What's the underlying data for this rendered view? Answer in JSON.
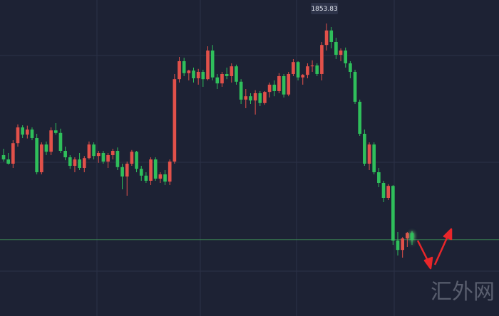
{
  "chart_data": {
    "type": "candlestick",
    "up_color": "#e2514a",
    "down_color": "#2fbf5b",
    "ohlc": [
      [
        1823.0,
        1824.5,
        1821.5,
        1822.0
      ],
      [
        1822.0,
        1823.5,
        1820.8,
        1821.0
      ],
      [
        1821.0,
        1826.5,
        1820.0,
        1825.8
      ],
      [
        1825.8,
        1830.2,
        1825.0,
        1829.5
      ],
      [
        1829.5,
        1830.0,
        1827.0,
        1827.8
      ],
      [
        1827.8,
        1829.9,
        1826.9,
        1829.0
      ],
      [
        1829.0,
        1829.5,
        1826.5,
        1827.0
      ],
      [
        1827.0,
        1828.0,
        1818.5,
        1819.0
      ],
      [
        1819.0,
        1826.0,
        1818.5,
        1825.5
      ],
      [
        1825.5,
        1826.2,
        1823.0,
        1823.8
      ],
      [
        1823.8,
        1829.5,
        1823.0,
        1828.8
      ],
      [
        1828.8,
        1830.5,
        1827.8,
        1828.2
      ],
      [
        1828.2,
        1829.2,
        1823.5,
        1824.0
      ],
      [
        1824.0,
        1825.0,
        1821.8,
        1822.5
      ],
      [
        1822.5,
        1823.0,
        1819.8,
        1820.5
      ],
      [
        1820.5,
        1822.5,
        1819.0,
        1822.0
      ],
      [
        1822.0,
        1823.5,
        1819.5,
        1820.0
      ],
      [
        1820.0,
        1822.8,
        1819.0,
        1822.3
      ],
      [
        1822.3,
        1826.2,
        1822.0,
        1825.5
      ],
      [
        1825.5,
        1826.0,
        1822.0,
        1822.8
      ],
      [
        1822.8,
        1824.0,
        1821.2,
        1823.5
      ],
      [
        1823.5,
        1824.0,
        1821.0,
        1821.5
      ],
      [
        1821.5,
        1823.5,
        1820.0,
        1823.0
      ],
      [
        1823.0,
        1824.5,
        1822.0,
        1824.0
      ],
      [
        1824.0,
        1824.8,
        1819.5,
        1820.2
      ],
      [
        1820.2,
        1821.0,
        1815.0,
        1818.0
      ],
      [
        1818.0,
        1821.5,
        1813.5,
        1821.0
      ],
      [
        1821.0,
        1824.2,
        1820.5,
        1823.8
      ],
      [
        1823.8,
        1824.0,
        1819.0,
        1819.8
      ],
      [
        1819.8,
        1820.5,
        1817.0,
        1818.2
      ],
      [
        1818.2,
        1819.0,
        1816.5,
        1817.0
      ],
      [
        1817.0,
        1822.5,
        1816.0,
        1822.0
      ],
      [
        1822.0,
        1822.5,
        1817.0,
        1817.5
      ],
      [
        1817.5,
        1819.0,
        1816.5,
        1818.5
      ],
      [
        1818.5,
        1819.5,
        1816.0,
        1816.8
      ],
      [
        1816.8,
        1822.0,
        1816.0,
        1821.5
      ],
      [
        1821.5,
        1842.0,
        1821.0,
        1840.8
      ],
      [
        1840.8,
        1846.0,
        1840.0,
        1845.0
      ],
      [
        1845.0,
        1845.8,
        1841.5,
        1842.2
      ],
      [
        1842.2,
        1843.0,
        1840.5,
        1842.8
      ],
      [
        1842.8,
        1843.5,
        1840.0,
        1841.0
      ],
      [
        1841.0,
        1843.2,
        1839.5,
        1842.5
      ],
      [
        1842.5,
        1843.0,
        1839.0,
        1840.8
      ],
      [
        1840.8,
        1848.5,
        1840.5,
        1847.5
      ],
      [
        1847.5,
        1848.8,
        1840.5,
        1841.2
      ],
      [
        1841.2,
        1842.0,
        1838.5,
        1839.8
      ],
      [
        1839.8,
        1842.5,
        1839.0,
        1842.0
      ],
      [
        1842.0,
        1843.5,
        1840.8,
        1841.5
      ],
      [
        1841.5,
        1844.5,
        1840.0,
        1843.8
      ],
      [
        1843.8,
        1844.2,
        1839.5,
        1840.2
      ],
      [
        1840.2,
        1840.8,
        1835.0,
        1836.0
      ],
      [
        1836.0,
        1838.5,
        1834.0,
        1836.8
      ],
      [
        1836.8,
        1837.5,
        1835.0,
        1835.8
      ],
      [
        1835.8,
        1838.2,
        1832.5,
        1837.5
      ],
      [
        1837.5,
        1838.0,
        1834.5,
        1835.2
      ],
      [
        1835.2,
        1838.0,
        1834.8,
        1837.8
      ],
      [
        1837.8,
        1840.0,
        1836.5,
        1839.5
      ],
      [
        1839.5,
        1840.5,
        1836.8,
        1838.0
      ],
      [
        1838.0,
        1842.2,
        1837.5,
        1841.5
      ],
      [
        1841.5,
        1842.0,
        1836.5,
        1837.2
      ],
      [
        1837.2,
        1842.5,
        1836.8,
        1842.0
      ],
      [
        1842.0,
        1845.5,
        1841.5,
        1844.8
      ],
      [
        1844.8,
        1845.0,
        1840.5,
        1841.2
      ],
      [
        1841.2,
        1842.0,
        1839.5,
        1841.8
      ],
      [
        1841.8,
        1844.5,
        1841.0,
        1843.8
      ],
      [
        1843.8,
        1845.2,
        1842.5,
        1844.0
      ],
      [
        1844.0,
        1844.5,
        1841.5,
        1842.0
      ],
      [
        1842.0,
        1849.5,
        1840.5,
        1848.8
      ],
      [
        1848.8,
        1853.83,
        1847.5,
        1852.2
      ],
      [
        1852.2,
        1853.0,
        1848.0,
        1849.5
      ],
      [
        1849.5,
        1850.5,
        1845.5,
        1846.5
      ],
      [
        1846.5,
        1848.0,
        1845.0,
        1847.5
      ],
      [
        1847.5,
        1848.2,
        1843.5,
        1844.5
      ],
      [
        1844.5,
        1845.0,
        1841.0,
        1842.5
      ],
      [
        1842.5,
        1843.0,
        1835.0,
        1835.5
      ],
      [
        1835.5,
        1836.0,
        1827.5,
        1828.0
      ],
      [
        1828.0,
        1829.0,
        1820.5,
        1821.0
      ],
      [
        1821.0,
        1826.0,
        1819.5,
        1825.5
      ],
      [
        1825.5,
        1826.0,
        1818.5,
        1819.0
      ],
      [
        1819.0,
        1820.0,
        1815.5,
        1816.5
      ],
      [
        1816.5,
        1817.0,
        1812.0,
        1813.0
      ],
      [
        1813.0,
        1816.2,
        1812.5,
        1815.8
      ],
      [
        1815.8,
        1816.0,
        1802.0,
        1803.0
      ],
      [
        1803.0,
        1805.0,
        1799.5,
        1800.8
      ],
      [
        1800.8,
        1803.8,
        1799.0,
        1803.5
      ],
      [
        1803.5,
        1805.0,
        1801.5,
        1804.8
      ],
      [
        1804.8,
        1805.2,
        1802.0,
        1803.2
      ]
    ],
    "watermark": "汇外网"
  }
}
